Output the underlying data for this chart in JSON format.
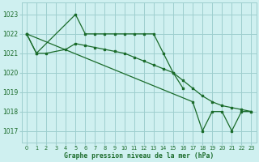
{
  "bg_color": "#cff0f0",
  "grid_color": "#9ecece",
  "line_color": "#1a6b2a",
  "xlabel": "Graphe pression niveau de la mer (hPa)",
  "ylim": [
    1016.4,
    1023.6
  ],
  "yticks": [
    1017,
    1018,
    1019,
    1020,
    1021,
    1022,
    1023
  ],
  "xlim": [
    -0.5,
    23.5
  ],
  "xticks": [
    0,
    1,
    2,
    3,
    4,
    5,
    6,
    7,
    8,
    9,
    10,
    11,
    12,
    13,
    14,
    15,
    16,
    17,
    18,
    19,
    20,
    21,
    22,
    23
  ],
  "series_a_x": [
    0,
    1,
    5,
    6,
    7,
    8,
    9,
    10,
    11,
    12,
    13,
    14,
    15,
    16
  ],
  "series_a_y": [
    1022,
    1021,
    1023,
    1022,
    1022,
    1022,
    1022,
    1022,
    1022,
    1022,
    1022,
    1021,
    1020,
    1019.2
  ],
  "series_b_x": [
    0,
    1,
    2,
    4,
    5,
    6,
    7,
    8,
    9,
    10,
    11,
    12,
    13,
    14,
    15,
    16,
    17,
    18,
    19,
    20,
    21,
    22,
    23
  ],
  "series_b_y": [
    1022,
    1021,
    1021,
    1021.2,
    1021.5,
    1021.4,
    1021.3,
    1021.2,
    1021.1,
    1021.0,
    1020.8,
    1020.6,
    1020.4,
    1020.2,
    1020.0,
    1019.6,
    1019.2,
    1018.8,
    1018.5,
    1018.3,
    1018.2,
    1018.1,
    1018.0
  ],
  "series_c_x": [
    0,
    17,
    18,
    19,
    20,
    21,
    22,
    23
  ],
  "series_c_y": [
    1022,
    1018.5,
    1017.0,
    1018.0,
    1018.0,
    1017.0,
    1018.0,
    1018.0
  ],
  "lw": 0.9,
  "ms": 2.0
}
